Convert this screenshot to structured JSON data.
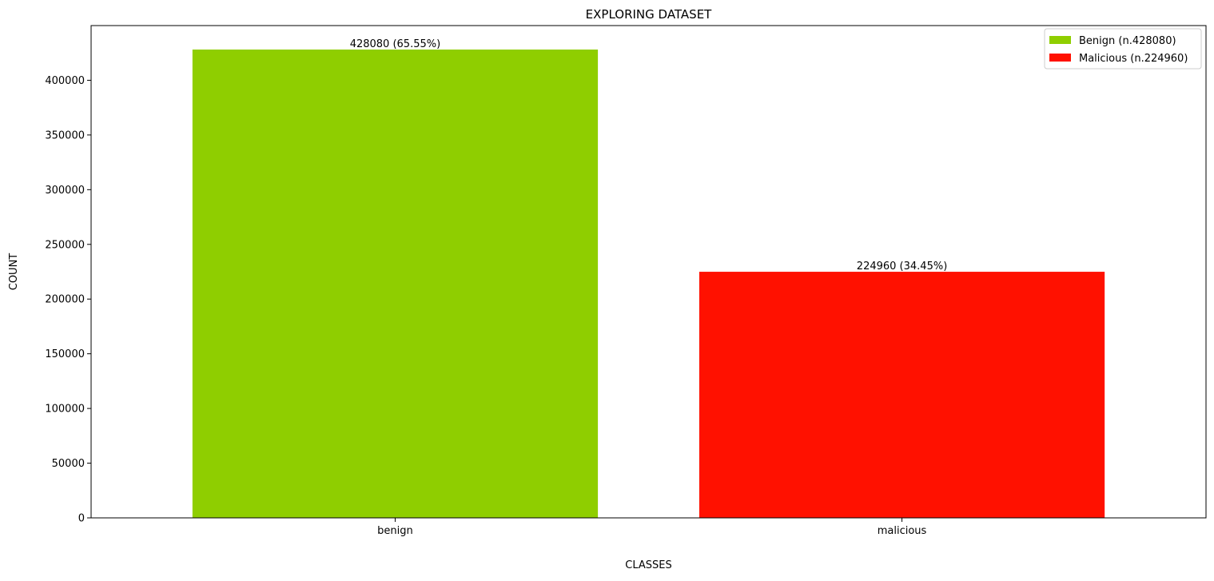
{
  "chart_data": {
    "type": "bar",
    "title": "EXPLORING DATASET",
    "xlabel": "CLASSES",
    "ylabel": "COUNT",
    "categories": [
      "benign",
      "malicious"
    ],
    "values": [
      428080,
      224960
    ],
    "bar_labels": [
      "428080 (65.55%)",
      "224960 (34.45%)"
    ],
    "colors": [
      "#8fce00",
      "#ff1100"
    ],
    "ylim": [
      0,
      450000
    ],
    "yticks": [
      0,
      50000,
      100000,
      150000,
      200000,
      250000,
      300000,
      350000,
      400000
    ],
    "ytick_labels": [
      "0",
      "50000",
      "100000",
      "150000",
      "200000",
      "250000",
      "300000",
      "350000",
      "400000"
    ],
    "grid": false,
    "legend": {
      "placement": "top-right",
      "entries": [
        {
          "label": "Benign (n.428080)",
          "color": "#8fce00"
        },
        {
          "label": "Malicious (n.224960)",
          "color": "#ff1100"
        }
      ]
    }
  }
}
